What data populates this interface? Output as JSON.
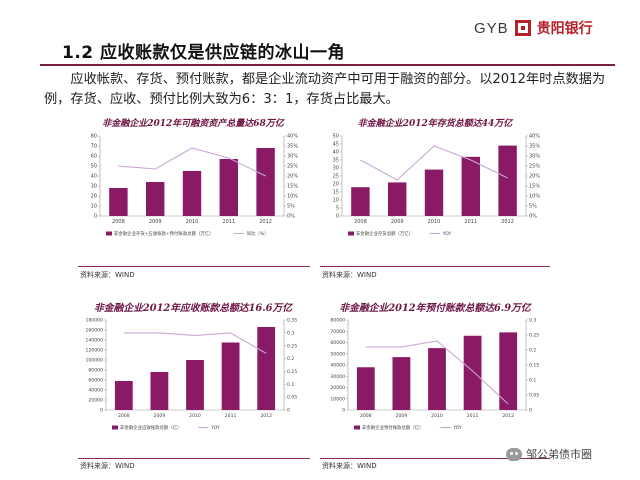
{
  "header": {
    "title": "1.2  应收账款仅是供应链的冰山一角",
    "brand_en": "GYB",
    "brand_cn": "贵阳银行"
  },
  "intro": {
    "text": "应收帐款、存货、预付账款，都是企业流动资产中可用于融资的部分。以2012年时点数据为例，存货、应收、预付比例大致为6：3：1，存货占比最大。"
  },
  "colors": {
    "bar": "#8b1a66",
    "line": "#c8a6d6",
    "title": "#6e1644",
    "rule": "#7a1f3d"
  },
  "watermark": {
    "text": "邹公弟债市圈"
  },
  "chart_data": [
    {
      "type": "bar",
      "title": "非金融企业2012年可融资资产总量达68万亿",
      "categories": [
        "2008",
        "2009",
        "2010",
        "2011",
        "2012"
      ],
      "series": [
        {
          "name": "非金融企业存货+应收账款+预付账款总额（万亿）",
          "type": "bar",
          "axis": "left",
          "values": [
            28,
            34,
            45,
            57,
            68
          ]
        },
        {
          "name": "同比（%）",
          "type": "line",
          "axis": "right",
          "values": [
            25,
            23.5,
            34,
            29,
            20
          ]
        }
      ],
      "y_left": {
        "min": 0,
        "max": 80,
        "ticks": [
          "0",
          "10",
          "20",
          "30",
          "40",
          "50",
          "60",
          "70",
          "80"
        ]
      },
      "y_right": {
        "min": 0,
        "max": 40,
        "ticks": [
          "0%",
          "5%",
          "10%",
          "15%",
          "20%",
          "25%",
          "30%",
          "35%",
          "40%"
        ]
      },
      "source": "资料来源：WIND"
    },
    {
      "type": "bar",
      "title": "非金融企业2012年存货总额达44万亿",
      "categories": [
        "2008",
        "2009",
        "2010",
        "2011",
        "2012"
      ],
      "series": [
        {
          "name": "非金融企业存货总额（万亿）",
          "type": "bar",
          "axis": "left",
          "values": [
            18,
            21,
            29,
            37,
            44
          ]
        },
        {
          "name": "YOY",
          "type": "line",
          "axis": "right",
          "values": [
            28,
            18,
            35,
            28,
            19
          ]
        }
      ],
      "y_left": {
        "min": 0,
        "max": 50,
        "ticks": [
          "0",
          "5",
          "10",
          "15",
          "20",
          "25",
          "30",
          "35",
          "40",
          "45",
          "50"
        ]
      },
      "y_right": {
        "min": 0,
        "max": 40,
        "ticks": [
          "0%",
          "5%",
          "10%",
          "15%",
          "20%",
          "25%",
          "30%",
          "35%",
          "40%"
        ]
      },
      "source": "资料来源：WIND"
    },
    {
      "type": "bar",
      "title": "非金融企业2012年应收账款总额达16.6万亿",
      "categories": [
        "2008",
        "2009",
        "2010",
        "2011",
        "2012"
      ],
      "series": [
        {
          "name": "非金融企业应收账款总额（亿）",
          "type": "bar",
          "axis": "left",
          "values": [
            58000,
            76000,
            100000,
            135000,
            166000
          ]
        },
        {
          "name": "YOY",
          "type": "line",
          "axis": "right",
          "values": [
            0.3,
            0.3,
            0.29,
            0.3,
            0.22
          ]
        }
      ],
      "y_left": {
        "min": 0,
        "max": 180000,
        "ticks": [
          "0",
          "20000",
          "40000",
          "60000",
          "80000",
          "100000",
          "120000",
          "140000",
          "160000",
          "180000"
        ]
      },
      "y_right": {
        "min": 0,
        "max": 0.35,
        "ticks": [
          "0",
          "0.05",
          "0.1",
          "0.15",
          "0.2",
          "0.25",
          "0.3",
          "0.35"
        ]
      },
      "source": "资料来源：WIND"
    },
    {
      "type": "bar",
      "title": "非金融企业2012年预付账款总额达6.9万亿",
      "categories": [
        "2008",
        "2009",
        "2010",
        "2011",
        "2012"
      ],
      "series": [
        {
          "name": "非金融企业预付账款总额（亿）",
          "type": "bar",
          "axis": "left",
          "values": [
            38000,
            47000,
            55000,
            66000,
            69000
          ]
        },
        {
          "name": "YOY",
          "type": "line",
          "axis": "right",
          "values": [
            0.21,
            0.21,
            0.23,
            0.13,
            0.02
          ]
        }
      ],
      "y_left": {
        "min": 0,
        "max": 80000,
        "ticks": [
          "0",
          "10000",
          "20000",
          "30000",
          "40000",
          "50000",
          "60000",
          "70000",
          "80000"
        ]
      },
      "y_right": {
        "min": 0,
        "max": 0.3,
        "ticks": [
          "0",
          "0.05",
          "0.1",
          "0.15",
          "0.2",
          "0.25",
          "0.3"
        ]
      },
      "source": "资料来源：WIND"
    }
  ]
}
